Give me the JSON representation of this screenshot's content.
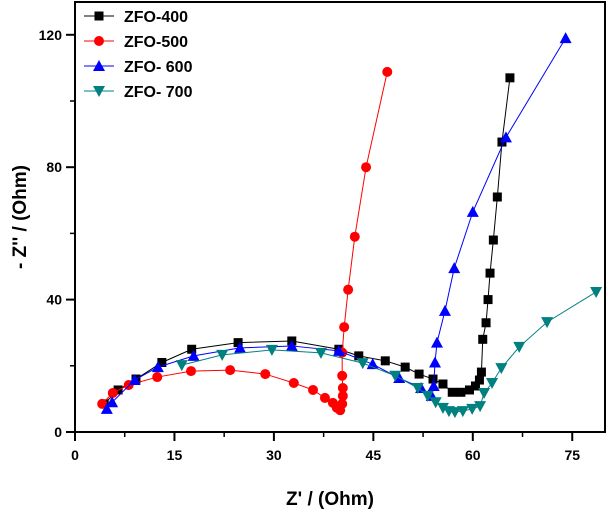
{
  "chart_data": {
    "type": "scatter",
    "xlabel": "Z' / (Ohm)",
    "ylabel": "- Z'' / (Ohm)",
    "xlim": [
      0,
      80
    ],
    "ylim": [
      0,
      130
    ],
    "xticks": [
      0,
      15,
      30,
      45,
      60,
      75
    ],
    "yticks": [
      0,
      40,
      80,
      120
    ],
    "grid": false,
    "legend_position": "top-left",
    "series": [
      {
        "name": "ZFO-400",
        "color": "#000000",
        "marker": "square",
        "x": [
          4.4,
          6.5,
          9.2,
          13.1,
          17.6,
          24.6,
          32.7,
          39.8,
          42.8,
          46.8,
          49.8,
          51.9,
          54.0,
          55.5,
          56.9,
          58.2,
          59.5,
          60.4,
          61.0,
          61.3,
          61.5,
          62.0,
          62.3,
          62.6,
          63.1,
          63.7,
          64.4,
          65.6
        ],
        "y": [
          8.5,
          12.7,
          16.0,
          21.0,
          25.0,
          27.0,
          27.5,
          25.0,
          23.0,
          21.5,
          19.6,
          17.5,
          16.0,
          14.5,
          12.0,
          12.0,
          12.7,
          13.9,
          15.7,
          18.1,
          28.0,
          33.0,
          40.0,
          48.0,
          58.0,
          71.0,
          87.6,
          107.0
        ]
      },
      {
        "name": "ZFO-500",
        "color": "#ff0000",
        "marker": "circle",
        "x": [
          4.1,
          5.7,
          8.1,
          12.4,
          17.5,
          23.4,
          28.7,
          33.0,
          35.9,
          37.7,
          38.9,
          39.5,
          40.0,
          40.3,
          40.4,
          40.4,
          40.3,
          40.3,
          40.6,
          41.2,
          42.2,
          43.9,
          47.1
        ],
        "y": [
          8.5,
          11.8,
          14.2,
          16.6,
          18.4,
          18.7,
          17.5,
          14.8,
          12.7,
          10.3,
          8.8,
          7.3,
          6.6,
          8.5,
          10.9,
          13.3,
          17.0,
          24.0,
          31.7,
          43.0,
          59.0,
          80.0,
          108.8
        ]
      },
      {
        "name": "ZFO- 600",
        "color": "#0000ff",
        "marker": "triangle-up",
        "x": [
          4.8,
          5.6,
          9.0,
          12.5,
          17.9,
          24.9,
          32.7,
          39.8,
          44.9,
          48.9,
          52.2,
          53.8,
          54.1,
          54.3,
          54.6,
          55.8,
          57.2,
          60.0,
          65.0,
          74.0
        ],
        "y": [
          7.0,
          9.0,
          15.7,
          19.6,
          23.0,
          25.4,
          26.0,
          24.5,
          20.5,
          16.3,
          13.3,
          10.9,
          13.9,
          21.0,
          27.0,
          36.6,
          49.5,
          66.5,
          89.0,
          119.0
        ]
      },
      {
        "name": "ZFO- 700",
        "color": "#008080",
        "marker": "triangle-down",
        "x": [
          16.1,
          22.2,
          29.7,
          37.1,
          43.4,
          48.3,
          51.7,
          53.2,
          54.4,
          55.5,
          56.4,
          57.3,
          58.5,
          59.9,
          61.1,
          61.7,
          62.9,
          64.3,
          67.0,
          71.2,
          78.6
        ],
        "y": [
          20.2,
          23.3,
          24.8,
          23.9,
          20.8,
          17.0,
          13.3,
          10.9,
          9.0,
          7.3,
          6.3,
          6.0,
          6.3,
          7.0,
          7.8,
          11.8,
          14.8,
          19.3,
          25.7,
          33.2,
          42.3
        ]
      }
    ]
  }
}
